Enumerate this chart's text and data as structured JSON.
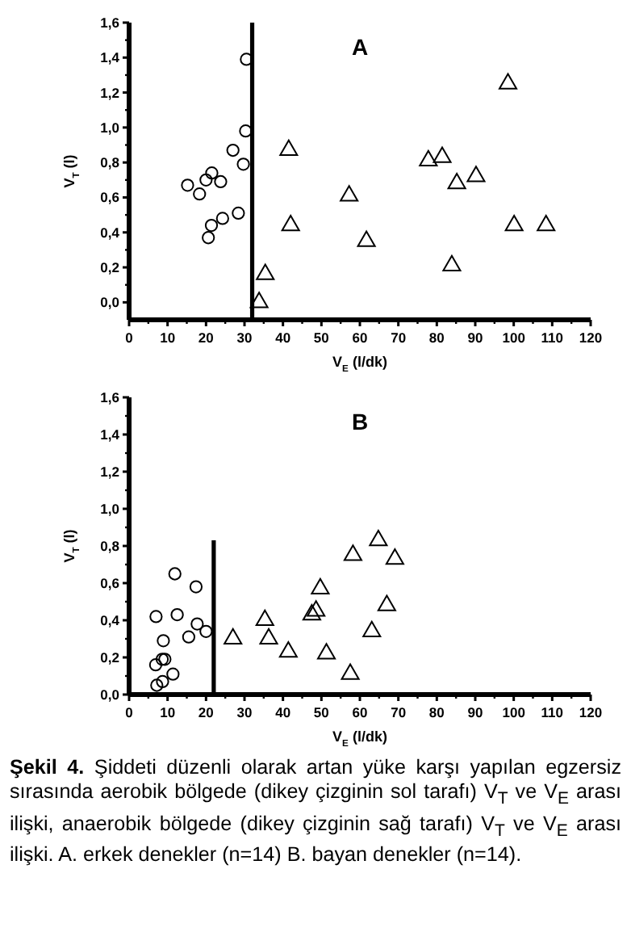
{
  "chart_data": [
    {
      "type": "scatter",
      "title": "A",
      "xlabel": "V$_{E}$ (l/dk)",
      "ylabel": "V$_{T}$ (l)",
      "xlim": [
        0,
        120
      ],
      "ylim": [
        -0.1,
        1.6
      ],
      "xticks": [
        0,
        10,
        20,
        30,
        40,
        50,
        60,
        70,
        80,
        90,
        100,
        110,
        120
      ],
      "yticks": [
        {
          "value": 0,
          "label": "0,0"
        },
        {
          "value": 0.2,
          "label": "0,2"
        },
        {
          "value": 0.4,
          "label": "0,4"
        },
        {
          "value": 0.6,
          "label": "0,6"
        },
        {
          "value": 0.8,
          "label": "0,8"
        },
        {
          "value": 1,
          "label": "1,0"
        },
        {
          "value": 1.2,
          "label": "1,2"
        },
        {
          "value": 1.4,
          "label": "1,4"
        },
        {
          "value": 1.6,
          "label": "1,6"
        }
      ],
      "grid": false,
      "series": [
        {
          "marker": "circle",
          "color": "#000000",
          "x": [
            15.2,
            18.3,
            20,
            21.5,
            23.8,
            20.6,
            21.4,
            24.3,
            28.4,
            27,
            29.7,
            30.3,
            30.5
          ],
          "values": [
            0.67,
            0.62,
            0.7,
            0.74,
            0.69,
            0.37,
            0.44,
            0.48,
            0.51,
            0.87,
            0.79,
            0.98,
            1.39
          ]
        },
        {
          "marker": "triangle",
          "color": "#000000",
          "x": [
            33.8,
            35.4,
            41.5,
            42,
            57.2,
            61.7,
            77.8,
            81.4,
            83.9,
            85.2,
            90.2,
            98.5,
            100.1,
            108.4
          ],
          "values": [
            0,
            0.16,
            0.87,
            0.44,
            0.61,
            0.35,
            0.81,
            0.83,
            0.21,
            0.68,
            0.72,
            1.25,
            0.44,
            0.44
          ]
        },
        {
          "type": "line",
          "marker": "none",
          "line_style": "solid",
          "color": "#000000",
          "x": [
            32,
            32
          ],
          "values": [
            -0.1,
            1.6
          ]
        }
      ]
    },
    {
      "type": "scatter",
      "title": "B",
      "xlabel": "V$_{E}$ (l/dk)",
      "ylabel": "V$_{T}$ (l)",
      "xlim": [
        0,
        120
      ],
      "ylim": [
        0,
        1.6
      ],
      "xticks": [
        0,
        10,
        20,
        30,
        40,
        50,
        60,
        70,
        80,
        90,
        100,
        110,
        120
      ],
      "yticks": [
        {
          "value": 0,
          "label": "0,0"
        },
        {
          "value": 0.2,
          "label": "0,2"
        },
        {
          "value": 0.4,
          "label": "0,4"
        },
        {
          "value": 0.6,
          "label": "0,6"
        },
        {
          "value": 0.8,
          "label": "0,8"
        },
        {
          "value": 1,
          "label": "1,0"
        },
        {
          "value": 1.2,
          "label": "1,2"
        },
        {
          "value": 1.4,
          "label": "1,4"
        },
        {
          "value": 1.6,
          "label": "1,6"
        }
      ],
      "grid": false,
      "series": [
        {
          "marker": "circle",
          "color": "#000000",
          "x": [
            7,
            6.9,
            7.2,
            8.6,
            9.3,
            8.9,
            8.7,
            11.4,
            11.9,
            12.5,
            15.5,
            17.4,
            17.7,
            20
          ],
          "values": [
            0.42,
            0.16,
            0.05,
            0.19,
            0.19,
            0.29,
            0.07,
            0.11,
            0.65,
            0.43,
            0.31,
            0.58,
            0.38,
            0.34
          ]
        },
        {
          "marker": "triangle",
          "color": "#000000",
          "x": [
            27,
            35.3,
            36.3,
            41.4,
            47.5,
            48.6,
            49.7,
            51.3,
            57.5,
            58.2,
            63.1,
            64.8,
            67,
            69.1
          ],
          "values": [
            0.3,
            0.4,
            0.3,
            0.23,
            0.43,
            0.45,
            0.57,
            0.22,
            0.11,
            0.75,
            0.34,
            0.83,
            0.48,
            0.73
          ]
        },
        {
          "type": "line",
          "marker": "none",
          "line_style": "solid",
          "color": "#000000",
          "x": [
            22,
            22
          ],
          "values": [
            0,
            0.83
          ]
        }
      ],
      "annotations": [
        "Şekil 4. Şiddeti düzenli olarak artan yüke karşı yapılan egzersiz sırasında aerobik bölgede (dikey çizginin sol tarafı) V$_{T}$ ve V$_{E}$ arası ilişki, anaerobik bölgede (dikey çizginin sağ tarafı) V$_{T}$ ve V$_{E}$ arası ilişki. A. erkek denekler (n=14) B. bayan denekler (n=14)."
      ]
    }
  ]
}
